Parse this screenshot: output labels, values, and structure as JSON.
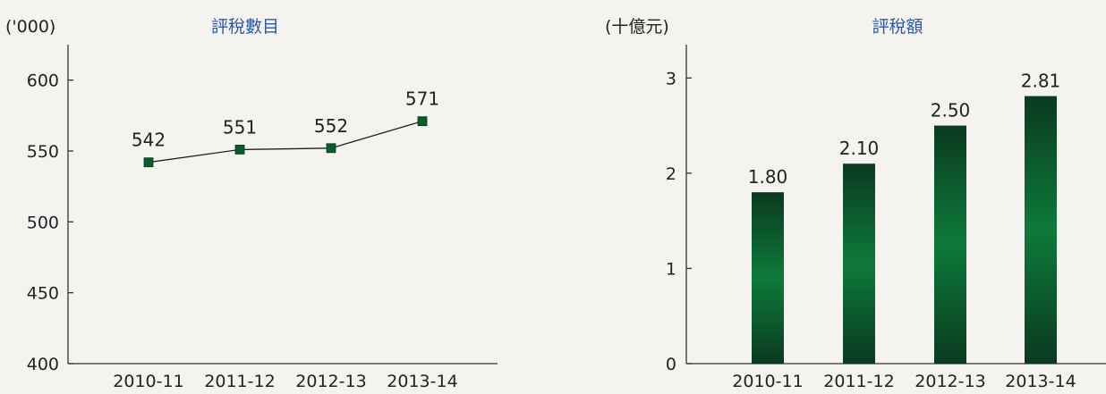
{
  "chart_data": [
    {
      "type": "line",
      "title": "評稅數目",
      "ylabel": "('000)",
      "categories": [
        "2010-11",
        "2011-12",
        "2012-13",
        "2013-14"
      ],
      "values": [
        542,
        551,
        552,
        571
      ],
      "data_labels": [
        "542",
        "551",
        "552",
        "571"
      ],
      "ylim": [
        400,
        625
      ],
      "yticks": [
        400,
        450,
        500,
        550,
        600
      ],
      "ytick_labels": [
        "400",
        "450",
        "500",
        "550",
        "600"
      ],
      "grid": false,
      "colors": {
        "line": "#222222",
        "marker": "#0a5a2a",
        "title": "#2b57a8"
      }
    },
    {
      "type": "bar",
      "title": "評稅額",
      "ylabel": "(十億元)",
      "categories": [
        "2010-11",
        "2011-12",
        "2012-13",
        "2013-14"
      ],
      "values": [
        1.8,
        2.1,
        2.5,
        2.81
      ],
      "data_labels": [
        "1.80",
        "2.10",
        "2.50",
        "2.81"
      ],
      "ylim": [
        0,
        3.35
      ],
      "yticks": [
        0,
        1,
        2,
        3
      ],
      "ytick_labels": [
        "0",
        "1",
        "2",
        "3"
      ],
      "grid": false,
      "colors": {
        "bar_dark": "#0b3a20",
        "bar_light": "#0d7a3a",
        "title": "#2b57a8"
      }
    }
  ]
}
